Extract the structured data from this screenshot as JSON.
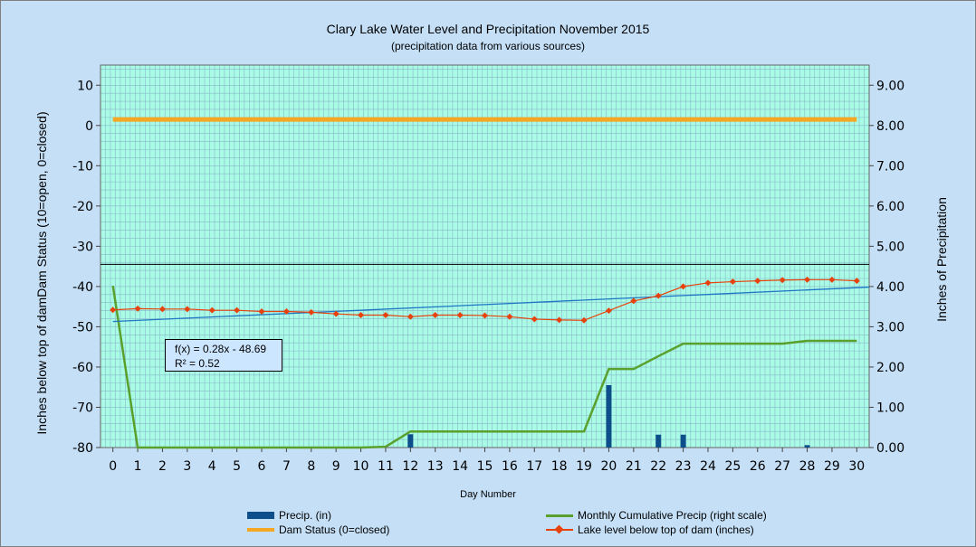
{
  "title": "Clary Lake Water Level and Precipitation November 2015",
  "subtitle": "(precipitation data from various sources)",
  "colors": {
    "background": "#c4dff6",
    "plot_bg": "#a9fbe6",
    "grid": "#88b8c8",
    "precip": "#0d4f8a",
    "cumulative": "#5aa02c",
    "dam": "#f5a623",
    "lake": "#e8420c",
    "trend": "#1f76c4"
  },
  "trendline_label": {
    "equation": "f(x) = 0.28x - 48.69",
    "r2": "R² = 0.52"
  },
  "legend": [
    {
      "key": "precip",
      "label": "Precip. (in)"
    },
    {
      "key": "cumulative",
      "label": "Monthly Cumulative Precip (right scale)"
    },
    {
      "key": "dam",
      "label": "Dam Status (0=closed)"
    },
    {
      "key": "lake",
      "label": "Lake level below top of dam (inches)"
    }
  ],
  "chart_data": {
    "type": "line",
    "title": "Clary Lake Water Level and Precipitation November 2015",
    "subtitle": "(precipitation data from various sources)",
    "xlabel": "Day Number",
    "ylabel_left": "Inches  below  top  of  damDam Status (10=open, 0=closed)",
    "ylabel_right": "Inches  of  Precipitation",
    "x": [
      0,
      1,
      2,
      3,
      4,
      5,
      6,
      7,
      8,
      9,
      10,
      11,
      12,
      13,
      14,
      15,
      16,
      17,
      18,
      19,
      20,
      21,
      22,
      23,
      24,
      25,
      26,
      27,
      28,
      29,
      30
    ],
    "x_ticks": [
      "0",
      "1",
      "2",
      "3",
      "4",
      "5",
      "6",
      "7",
      "8",
      "9",
      "10",
      "11",
      "12",
      "13",
      "14",
      "15",
      "16",
      "17",
      "18",
      "19",
      "20",
      "21",
      "22",
      "23",
      "24",
      "25",
      "26",
      "27",
      "28",
      "29",
      "30"
    ],
    "y_left_ticks": [
      "10",
      "0",
      "-10",
      "-20",
      "-30",
      "-40",
      "-50",
      "-60",
      "-70",
      "-80"
    ],
    "y_right_ticks": [
      "9.00",
      "8.00",
      "7.00",
      "6.00",
      "5.00",
      "4.00",
      "3.00",
      "2.00",
      "1.00",
      "0.00"
    ],
    "ylim_left": [
      -80,
      15
    ],
    "ylim_right": [
      0,
      9.5
    ],
    "grid": true,
    "reference_line": -34.5,
    "series": [
      {
        "name": "Lake level below top of dam (inches)",
        "axis": "left",
        "type": "line",
        "values": [
          -45.8,
          -45.5,
          -45.6,
          -45.6,
          -45.9,
          -45.9,
          -46.2,
          -46.2,
          -46.4,
          -46.8,
          -47.1,
          -47.1,
          -47.5,
          -47.1,
          -47.1,
          -47.2,
          -47.5,
          -48.1,
          -48.3,
          -48.4,
          -46,
          -43.6,
          -42.3,
          -40,
          -39.1,
          -38.8,
          -38.6,
          -38.4,
          -38.3,
          -38.3,
          -38.6
        ]
      },
      {
        "name": "Dam Status (0=closed)",
        "axis": "left",
        "type": "line",
        "values": [
          1.5,
          1.5,
          1.5,
          1.5,
          1.5,
          1.5,
          1.5,
          1.5,
          1.5,
          1.5,
          1.5,
          1.5,
          1.5,
          1.5,
          1.5,
          1.5,
          1.5,
          1.5,
          1.5,
          1.5,
          1.5,
          1.5,
          1.5,
          1.5,
          1.5,
          1.5,
          1.5,
          1.5,
          1.5,
          1.5,
          1.5
        ]
      },
      {
        "name": "Monthly Cumulative Precip (right scale)",
        "axis": "right",
        "type": "line",
        "values": [
          4.02,
          0,
          0,
          0,
          0,
          0,
          0,
          0,
          0,
          0,
          0,
          0.02,
          0.4,
          0.4,
          0.4,
          0.4,
          0.4,
          0.4,
          0.4,
          0.4,
          1.95,
          1.95,
          2.27,
          2.58,
          2.58,
          2.58,
          2.58,
          2.58,
          2.65,
          2.65,
          2.65
        ]
      },
      {
        "name": "Precip. (in)",
        "axis": "right",
        "type": "bar",
        "values": [
          0,
          0,
          0,
          0,
          0,
          0,
          0,
          0,
          0,
          0,
          0,
          0,
          0.33,
          0,
          0,
          0,
          0,
          0,
          0,
          0,
          1.55,
          0,
          0.32,
          0.32,
          0,
          0,
          0,
          0,
          0.06,
          0,
          0
        ]
      },
      {
        "name": "f(x) = 0.28x - 48.69",
        "axis": "left",
        "type": "trendline",
        "slope": 0.28,
        "intercept": -48.69
      }
    ]
  }
}
